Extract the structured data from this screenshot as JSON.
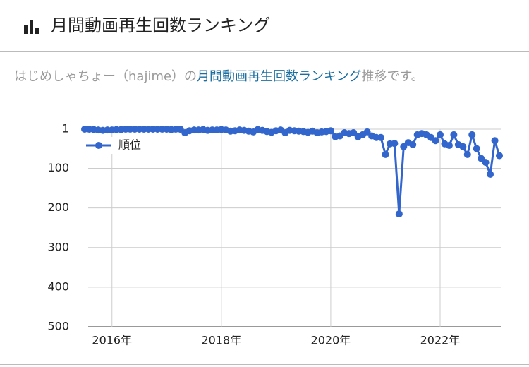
{
  "header": {
    "title": "月間動画再生回数ランキング"
  },
  "subtitle": {
    "prefix": "はじめしゃちょー（hajime）の",
    "link": "月間動画再生回数ランキング",
    "suffix": "推移です。"
  },
  "chart_data": {
    "type": "line",
    "x": [
      "2015-07",
      "2015-08",
      "2015-09",
      "2015-10",
      "2015-11",
      "2015-12",
      "2016-01",
      "2016-02",
      "2016-03",
      "2016-04",
      "2016-05",
      "2016-06",
      "2016-07",
      "2016-08",
      "2016-09",
      "2016-10",
      "2016-11",
      "2016-12",
      "2017-01",
      "2017-02",
      "2017-03",
      "2017-04",
      "2017-05",
      "2017-06",
      "2017-07",
      "2017-08",
      "2017-09",
      "2017-10",
      "2017-11",
      "2017-12",
      "2018-01",
      "2018-02",
      "2018-03",
      "2018-04",
      "2018-05",
      "2018-06",
      "2018-07",
      "2018-08",
      "2018-09",
      "2018-10",
      "2018-11",
      "2018-12",
      "2019-01",
      "2019-02",
      "2019-03",
      "2019-04",
      "2019-05",
      "2019-06",
      "2019-07",
      "2019-08",
      "2019-09",
      "2019-10",
      "2019-11",
      "2019-12",
      "2020-01",
      "2020-02",
      "2020-03",
      "2020-04",
      "2020-05",
      "2020-06",
      "2020-07",
      "2020-08",
      "2020-09",
      "2020-10",
      "2020-11",
      "2020-12",
      "2021-01",
      "2021-02",
      "2021-03",
      "2021-04",
      "2021-05",
      "2021-06",
      "2021-07",
      "2021-08",
      "2021-09",
      "2021-10",
      "2021-11",
      "2021-12",
      "2022-01",
      "2022-02",
      "2022-03",
      "2022-04",
      "2022-05",
      "2022-06",
      "2022-07",
      "2022-08",
      "2022-09",
      "2022-10",
      "2022-11",
      "2022-12",
      "2023-01",
      "2023-02"
    ],
    "series": [
      {
        "name": "順位",
        "color": "#3366cc",
        "values": [
          1,
          1,
          2,
          3,
          4,
          3,
          3,
          2,
          2,
          1,
          1,
          1,
          1,
          1,
          1,
          1,
          1,
          1,
          1,
          2,
          1,
          1,
          10,
          5,
          3,
          3,
          2,
          4,
          3,
          3,
          2,
          3,
          6,
          5,
          3,
          4,
          6,
          8,
          2,
          4,
          7,
          9,
          5,
          3,
          10,
          4,
          5,
          6,
          7,
          9,
          6,
          10,
          8,
          7,
          5,
          20,
          18,
          10,
          12,
          10,
          20,
          15,
          8,
          18,
          22,
          22,
          65,
          38,
          37,
          215,
          45,
          35,
          40,
          15,
          12,
          15,
          22,
          30,
          15,
          38,
          42,
          15,
          40,
          45,
          65,
          15,
          50,
          75,
          85,
          115,
          30,
          68
        ]
      }
    ],
    "xlim": [
      "2015-07",
      "2023-02"
    ],
    "xticks": [
      {
        "value": "2016-01",
        "label": "2016年"
      },
      {
        "value": "2018-01",
        "label": "2018年"
      },
      {
        "value": "2020-01",
        "label": "2020年"
      },
      {
        "value": "2022-01",
        "label": "2022年"
      }
    ],
    "ylim": [
      1,
      500
    ],
    "y_reversed": true,
    "yticks": [
      1,
      100,
      200,
      300,
      400,
      500
    ],
    "grid": true,
    "legend": "top-left"
  }
}
